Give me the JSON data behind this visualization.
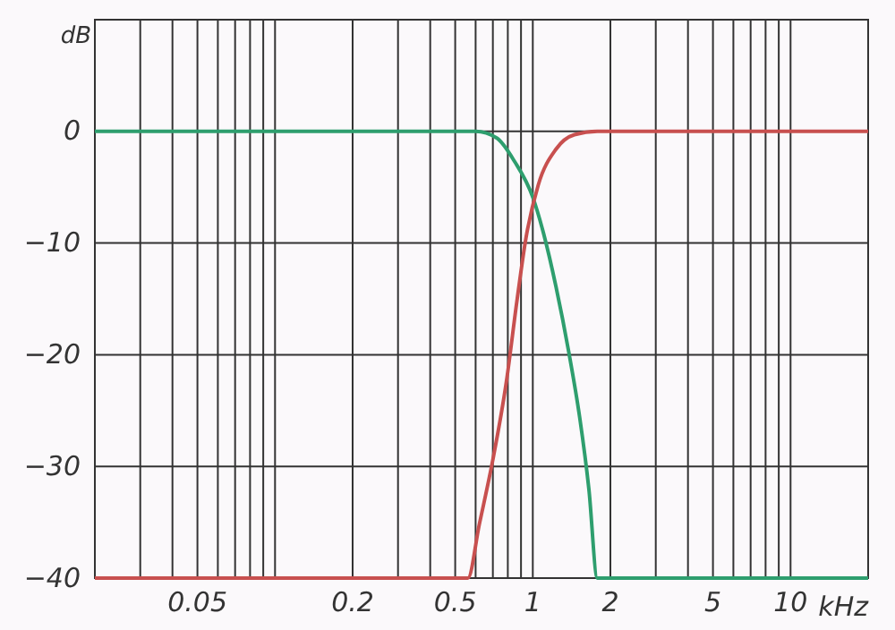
{
  "chart_data": {
    "type": "line",
    "xlabel": "kHz",
    "ylabel": "dB",
    "log": "x",
    "grid": true,
    "marker": "none",
    "line_style": "solid",
    "xlim": [
      0.02,
      20
    ],
    "ylim": [
      -40,
      10
    ],
    "xticks": [
      {
        "value": 0.03,
        "label": null
      },
      {
        "value": 0.04,
        "label": null
      },
      {
        "value": 0.05,
        "label": "0.05"
      },
      {
        "value": 0.06,
        "label": null
      },
      {
        "value": 0.07,
        "label": null
      },
      {
        "value": 0.08,
        "label": null
      },
      {
        "value": 0.09,
        "label": null
      },
      {
        "value": 0.1,
        "label": null
      },
      {
        "value": 0.2,
        "label": "0.2"
      },
      {
        "value": 0.3,
        "label": null
      },
      {
        "value": 0.4,
        "label": null
      },
      {
        "value": 0.5,
        "label": "0.5"
      },
      {
        "value": 0.6,
        "label": null
      },
      {
        "value": 0.7,
        "label": null
      },
      {
        "value": 0.8,
        "label": null
      },
      {
        "value": 0.9,
        "label": null
      },
      {
        "value": 1,
        "label": "1"
      },
      {
        "value": 2,
        "label": "2"
      },
      {
        "value": 3,
        "label": null
      },
      {
        "value": 4,
        "label": null
      },
      {
        "value": 5,
        "label": "5"
      },
      {
        "value": 6,
        "label": null
      },
      {
        "value": 7,
        "label": null
      },
      {
        "value": 8,
        "label": null
      },
      {
        "value": 9,
        "label": null
      },
      {
        "value": 10,
        "label": "10"
      }
    ],
    "yticks": [
      -40,
      -30,
      -20,
      -10,
      0
    ],
    "series": [
      {
        "color": "#2e9e6e",
        "x": [
          0.02,
          0.6,
          0.725,
          0.85,
          1.0,
          1.1,
          1.23,
          1.38,
          1.52,
          1.65,
          1.78,
          20
        ],
        "values": [
          0,
          0,
          -0.6,
          -2.7,
          -5.9,
          -9.1,
          -13.9,
          -19.8,
          -25.6,
          -32,
          -40,
          -40
        ]
      },
      {
        "color": "#c8504f",
        "x": [
          0.02,
          0.56,
          0.62,
          0.7,
          0.79,
          0.87,
          0.94,
          1.05,
          1.23,
          1.45,
          1.78,
          20
        ],
        "values": [
          -40,
          -40,
          -35.2,
          -29.4,
          -22.4,
          -15,
          -9.6,
          -4.8,
          -1.6,
          -0.3,
          0,
          0
        ]
      }
    ]
  }
}
